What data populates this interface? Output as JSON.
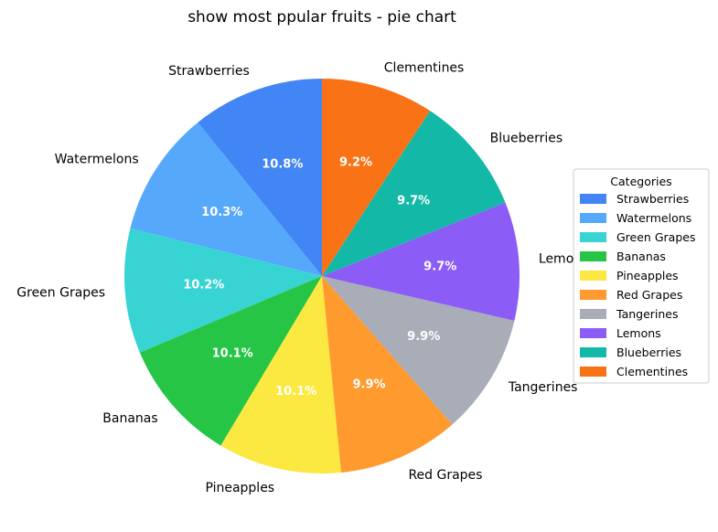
{
  "chart_data": {
    "type": "pie",
    "title": "show most ppular fruits - pie chart",
    "legend_title": "Categories",
    "legend_position": "right",
    "start_angle_deg": 90,
    "direction": "counterclockwise",
    "slices": [
      {
        "label": "Strawberries",
        "value": 10.8,
        "pct_text": "10.8%",
        "color": "#4285F4"
      },
      {
        "label": "Watermelons",
        "value": 10.3,
        "pct_text": "10.3%",
        "color": "#56A8FB"
      },
      {
        "label": "Green Grapes",
        "value": 10.2,
        "pct_text": "10.2%",
        "color": "#38D4D4"
      },
      {
        "label": "Bananas",
        "value": 10.1,
        "pct_text": "10.1%",
        "color": "#26C546"
      },
      {
        "label": "Pineapples",
        "value": 10.1,
        "pct_text": "10.1%",
        "color": "#FBE841"
      },
      {
        "label": "Red Grapes",
        "value": 9.9,
        "pct_text": "9.9%",
        "color": "#FF9A2E"
      },
      {
        "label": "Tangerines",
        "value": 9.9,
        "pct_text": "9.9%",
        "color": "#A8ADB8"
      },
      {
        "label": "Lemons",
        "value": 9.7,
        "pct_text": "9.7%",
        "color": "#8B5CF6"
      },
      {
        "label": "Blueberries",
        "value": 9.7,
        "pct_text": "9.7%",
        "color": "#14B8A6"
      },
      {
        "label": "Clementines",
        "value": 9.2,
        "pct_text": "9.2%",
        "color": "#F97316"
      }
    ]
  }
}
